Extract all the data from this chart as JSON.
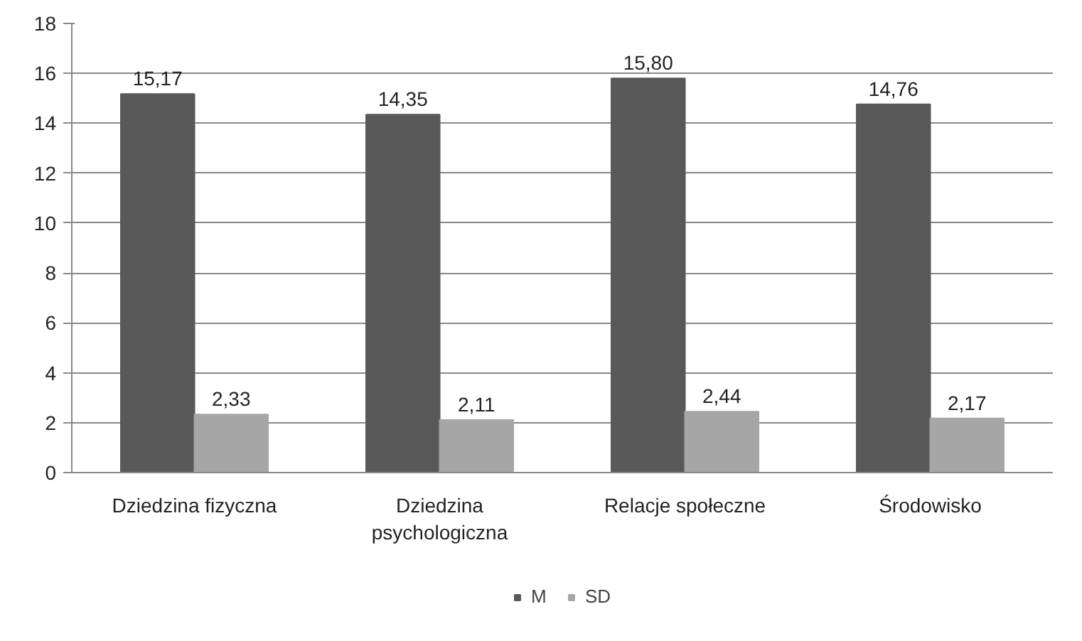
{
  "chart_data": {
    "type": "bar",
    "categories": [
      "Dziedzina fizyczna",
      "Dziedzina psychologiczna",
      "Relacje społeczne",
      "Środowisko"
    ],
    "series": [
      {
        "name": "M",
        "color": "#595959",
        "values": [
          15.17,
          14.35,
          15.8,
          14.76
        ],
        "value_labels": [
          "15,17",
          "14,35",
          "15,80",
          "14,76"
        ]
      },
      {
        "name": "SD",
        "color": "#a6a6a6",
        "values": [
          2.33,
          2.11,
          2.44,
          2.17
        ],
        "value_labels": [
          "2,33",
          "2,11",
          "2,44",
          "2,17"
        ]
      }
    ],
    "ylim": [
      0,
      18
    ],
    "yticks": [
      0,
      2,
      4,
      6,
      8,
      10,
      12,
      14,
      16,
      18
    ],
    "grid": "y",
    "legend": "bottom"
  }
}
